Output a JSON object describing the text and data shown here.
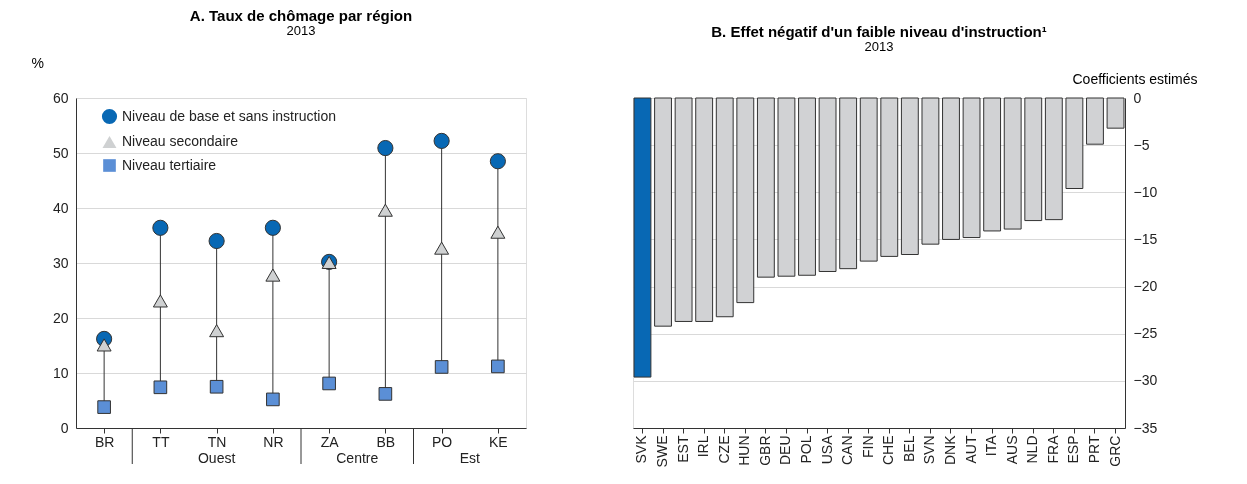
{
  "chart_data": [
    {
      "type": "scatter",
      "title": "A. Taux de chômage par région",
      "subtitle": "2013",
      "ylabel": "%",
      "categories": [
        "BR",
        "TT",
        "TN",
        "NR",
        "ZA",
        "BB",
        "PO",
        "KE"
      ],
      "series": [
        {
          "name": "Niveau de base et sans instruction",
          "color": "#0868b4",
          "marker": "circle",
          "values": [
            16.2,
            36.4,
            34.0,
            36.4,
            30.2,
            50.9,
            52.2,
            48.5
          ]
        },
        {
          "name": "Niveau secondaire",
          "color": "#cfd1d2",
          "marker": "triangle",
          "values": [
            15.1,
            23.1,
            17.7,
            27.8,
            30.1,
            39.6,
            32.7,
            35.6
          ]
        },
        {
          "name": "Niveau tertiaire",
          "color": "#5b8fd6",
          "marker": "square",
          "values": [
            3.8,
            7.4,
            7.5,
            5.2,
            8.1,
            6.2,
            11.1,
            11.2
          ]
        }
      ],
      "ylim": [
        0,
        60
      ],
      "yticks": [
        0,
        10,
        20,
        30,
        40,
        50,
        60
      ],
      "grid": "y",
      "legend": "top left",
      "annotations": [
        "Ouest",
        "Centre",
        "Est"
      ]
    },
    {
      "type": "bar",
      "title": "B. Effet négatif d'un faible niveau d'instruction¹",
      "subtitle": "2013",
      "ylabel": "Coefficients estimés",
      "categories": [
        "SVK",
        "SWE",
        "EST",
        "IRL",
        "CZE",
        "HUN",
        "GBR",
        "DEU",
        "POL",
        "USA",
        "CAN",
        "FIN",
        "CHE",
        "BEL",
        "SVN",
        "DNK",
        "AUT",
        "ITA",
        "AUS",
        "NLD",
        "FRA",
        "ESP",
        "PRT",
        "GRC"
      ],
      "values": [
        -29.6,
        -24.2,
        -23.7,
        -23.7,
        -23.2,
        -21.7,
        -19.0,
        -18.9,
        -18.8,
        -18.4,
        -18.1,
        -17.3,
        -16.8,
        -16.6,
        -15.5,
        -15.0,
        -14.8,
        -14.1,
        -13.9,
        -13.0,
        -12.9,
        -9.6,
        -4.9,
        -3.2
      ],
      "colors": [
        "#0868b4",
        "#d1d2d4",
        "#d1d2d4",
        "#d1d2d4",
        "#d1d2d4",
        "#d1d2d4",
        "#d1d2d4",
        "#d1d2d4",
        "#d1d2d4",
        "#d1d2d4",
        "#d1d2d4",
        "#d1d2d4",
        "#d1d2d4",
        "#d1d2d4",
        "#d1d2d4",
        "#d1d2d4",
        "#d1d2d4",
        "#d1d2d4",
        "#d1d2d4",
        "#d1d2d4",
        "#d1d2d4",
        "#d1d2d4",
        "#d1d2d4",
        "#d1d2d4"
      ],
      "ylim": [
        -35,
        0
      ],
      "yticks": [
        0,
        -5,
        -10,
        -15,
        -20,
        -25,
        -30,
        -35
      ],
      "grid": "y"
    }
  ]
}
